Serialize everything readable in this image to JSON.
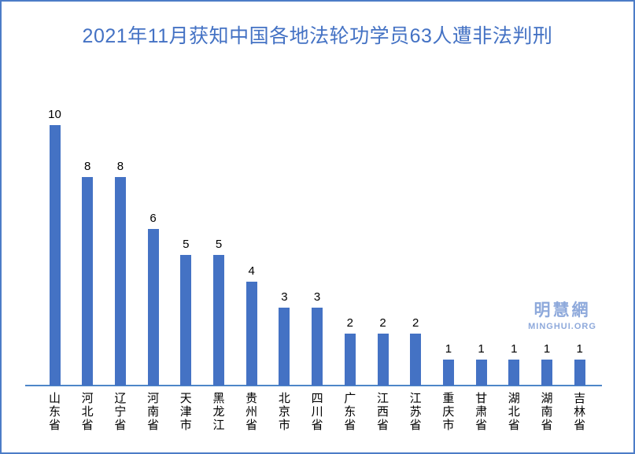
{
  "page": {
    "title": "2021年11月获知中国各地法轮功学员63人遭非法判刑"
  },
  "watermark": {
    "name": "明慧網",
    "site": "MINGHUI.ORG"
  },
  "chart_data": {
    "type": "bar",
    "title": "2021年11月获知中国各地法轮功学员63人遭非法判刑",
    "categories": [
      "山东省",
      "河北省",
      "辽宁省",
      "河南省",
      "天津市",
      "黑龙江",
      "贵州省",
      "北京市",
      "四川省",
      "广东省",
      "江西省",
      "江苏省",
      "重庆市",
      "甘肃省",
      "湖北省",
      "湖南省",
      "吉林省"
    ],
    "values": [
      10,
      8,
      8,
      6,
      5,
      5,
      4,
      3,
      3,
      2,
      2,
      2,
      1,
      1,
      1,
      1,
      1
    ],
    "data_labels": true,
    "xlabel": "",
    "ylabel": "",
    "ylim": [
      0,
      10
    ],
    "grid": false,
    "legend": false,
    "bar_color": "#4472C4",
    "axis_line_color": "#4E86C8",
    "title_color": "#4472C4",
    "watermark_color": "#8EA9DB",
    "border_color": "#4C7CC7",
    "label_color": "#000000"
  }
}
